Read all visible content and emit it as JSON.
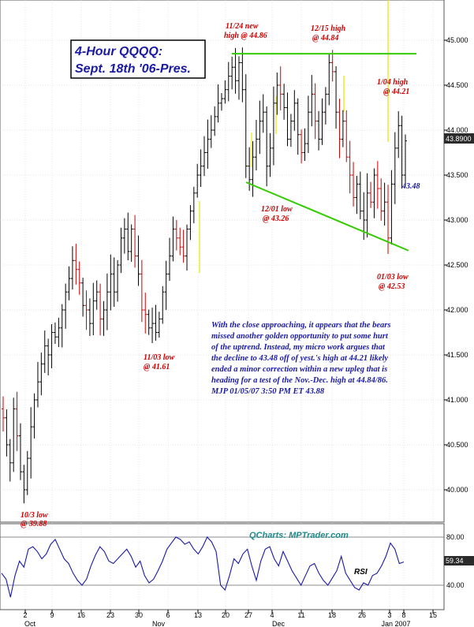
{
  "title": {
    "line1": "4-Hour QQQQ:",
    "line2": "Sept. 18th '06-Pres."
  },
  "colors": {
    "bar": "#000000",
    "red_bar": "#cc0000",
    "trend": "#33cc00",
    "marker": "#e6e600",
    "red_text": "#cc0000",
    "blue_text": "#1a1aa6",
    "title_text": "#1a1aa6",
    "price_label_bg": "#2b2b2b"
  },
  "annotations": {
    "nov24": [
      "11/24 new",
      "high @ 44.86"
    ],
    "dec15": [
      "12/15 high",
      "@ 44.84"
    ],
    "jan4": [
      "1/04 high",
      "@ 44.21"
    ],
    "val4348": "43.48",
    "dec01": [
      "12/01 low",
      "@ 43.26"
    ],
    "jan03": [
      "01/03 low",
      "@ 42.53"
    ],
    "nov03": [
      "11/03 low",
      "@ 41.61"
    ],
    "oct3": [
      "10/3 low",
      "@ 39.88"
    ]
  },
  "commentary": [
    "With the close approaching, it appears that the bears",
    "missed another golden opportunity to put some hurt",
    "of the uptrend. Instead, my micro work argues that",
    "the decline to 43.48 off of yest.'s high at 44.21 likely",
    "ended a minor correction within a new upleg that is",
    "heading for a test of the Nov.-Dec. high at 44.84/86.",
    "MJP  01/05/07 3:50 PM ET  43.88"
  ],
  "watermark": "QCharts: MPTrader.com",
  "rsi_label": "RSI",
  "price_axis": [
    "45.000",
    "44.500",
    "44.000",
    "43.500",
    "43.000",
    "42.500",
    "42.000",
    "41.500",
    "41.000",
    "40.500",
    "40.000"
  ],
  "last_price": "43.8900",
  "rsi_axis": [
    "80.00",
    "40.00"
  ],
  "rsi_last": "59.34",
  "date_ticks": [
    "2",
    "9",
    "16",
    "23",
    "30",
    "6",
    "13",
    "20",
    "27",
    "4",
    "11",
    "18",
    "26",
    "3",
    "8",
    "15"
  ],
  "month_labels": [
    "Oct",
    "Nov",
    "Dec",
    "Jan 2007"
  ],
  "chart_data": [
    {
      "type": "bar",
      "subtype": "ohlc",
      "title": "4-Hour QQQQ: Sept. 18th '06-Pres.",
      "x_label_ticks": [
        "2",
        "9",
        "16",
        "23",
        "30",
        "6",
        "13",
        "20",
        "27",
        "4",
        "11",
        "18",
        "26",
        "3",
        "8",
        "15"
      ],
      "months": [
        "Oct",
        "Nov",
        "Dec",
        "Jan 2007"
      ],
      "ylim": [
        39.65,
        45.4
      ],
      "y_ticks": [
        40.0,
        40.5,
        41.0,
        41.5,
        42.0,
        42.5,
        43.0,
        43.5,
        44.0,
        44.5,
        45.0
      ],
      "last_price": 43.89,
      "approx_closes": [
        40.8,
        40.5,
        40.3,
        40.9,
        40.6,
        40.2,
        40.0,
        40.35,
        40.7,
        41.0,
        41.2,
        41.4,
        41.6,
        41.5,
        41.75,
        41.7,
        41.8,
        42.0,
        42.2,
        42.35,
        42.55,
        42.45,
        42.3,
        42.05,
        42.0,
        41.85,
        42.1,
        42.2,
        41.9,
        42.0,
        42.2,
        42.4,
        42.2,
        42.5,
        42.8,
        42.9,
        42.65,
        42.9,
        42.6,
        42.4,
        42.0,
        41.95,
        41.8,
        41.85,
        41.75,
        41.9,
        42.2,
        42.4,
        42.6,
        42.9,
        42.8,
        42.7,
        42.6,
        42.9,
        43.1,
        43.3,
        43.5,
        43.6,
        43.75,
        43.9,
        44.0,
        44.15,
        44.3,
        44.35,
        44.45,
        44.6,
        44.7,
        44.55,
        44.75,
        44.45,
        43.6,
        43.45,
        43.7,
        43.9,
        44.1,
        44.2,
        43.6,
        43.8,
        44.3,
        44.5,
        44.4,
        44.25,
        43.9,
        44.1,
        44.3,
        43.95,
        43.75,
        43.85,
        44.2,
        44.4,
        44.1,
        43.9,
        44.2,
        44.4,
        44.75,
        44.65,
        44.2,
        43.9,
        44.1,
        43.7,
        43.5,
        43.25,
        43.4,
        43.1,
        43.0,
        43.3,
        43.2,
        43.5,
        43.35,
        43.1,
        43.2,
        42.8,
        43.4,
        43.8,
        44.05,
        43.5,
        43.88
      ],
      "trendlines": [
        {
          "name": "resistance",
          "from": [
            44.85,
            44.85
          ]
        },
        {
          "name": "support",
          "from": [
            43.42,
            42.66
          ]
        }
      ],
      "annotations": [
        "11/24 new high @ 44.86",
        "12/15 high @ 44.84",
        "1/04 high @ 44.21",
        "43.48",
        "12/01 low @ 43.26",
        "01/03 low @ 42.53",
        "11/03 low @ 41.61",
        "10/3 low @ 39.88"
      ]
    },
    {
      "type": "line",
      "series": [
        {
          "name": "RSI",
          "values": [
            50,
            45,
            30,
            48,
            60,
            55,
            70,
            72,
            68,
            62,
            66,
            74,
            78,
            70,
            62,
            58,
            50,
            44,
            40,
            45,
            56,
            65,
            72,
            68,
            60,
            58,
            62,
            66,
            70,
            64,
            55,
            60,
            48,
            42,
            45,
            52,
            60,
            70,
            75,
            80,
            78,
            74,
            76,
            70,
            66,
            72,
            80,
            76,
            68,
            40,
            36,
            48,
            62,
            58,
            66,
            70,
            56,
            44,
            60,
            70,
            72,
            62,
            56,
            68,
            60,
            52,
            46,
            40,
            48,
            56,
            58,
            50,
            44,
            40,
            46,
            52,
            64,
            50,
            44,
            38,
            36,
            42,
            40,
            48,
            50,
            56,
            64,
            75,
            70,
            58,
            59.34
          ]
        }
      ],
      "ylim": [
        24,
        88
      ],
      "y_ticks": [
        40,
        80
      ],
      "last_value": 59.34
    }
  ]
}
